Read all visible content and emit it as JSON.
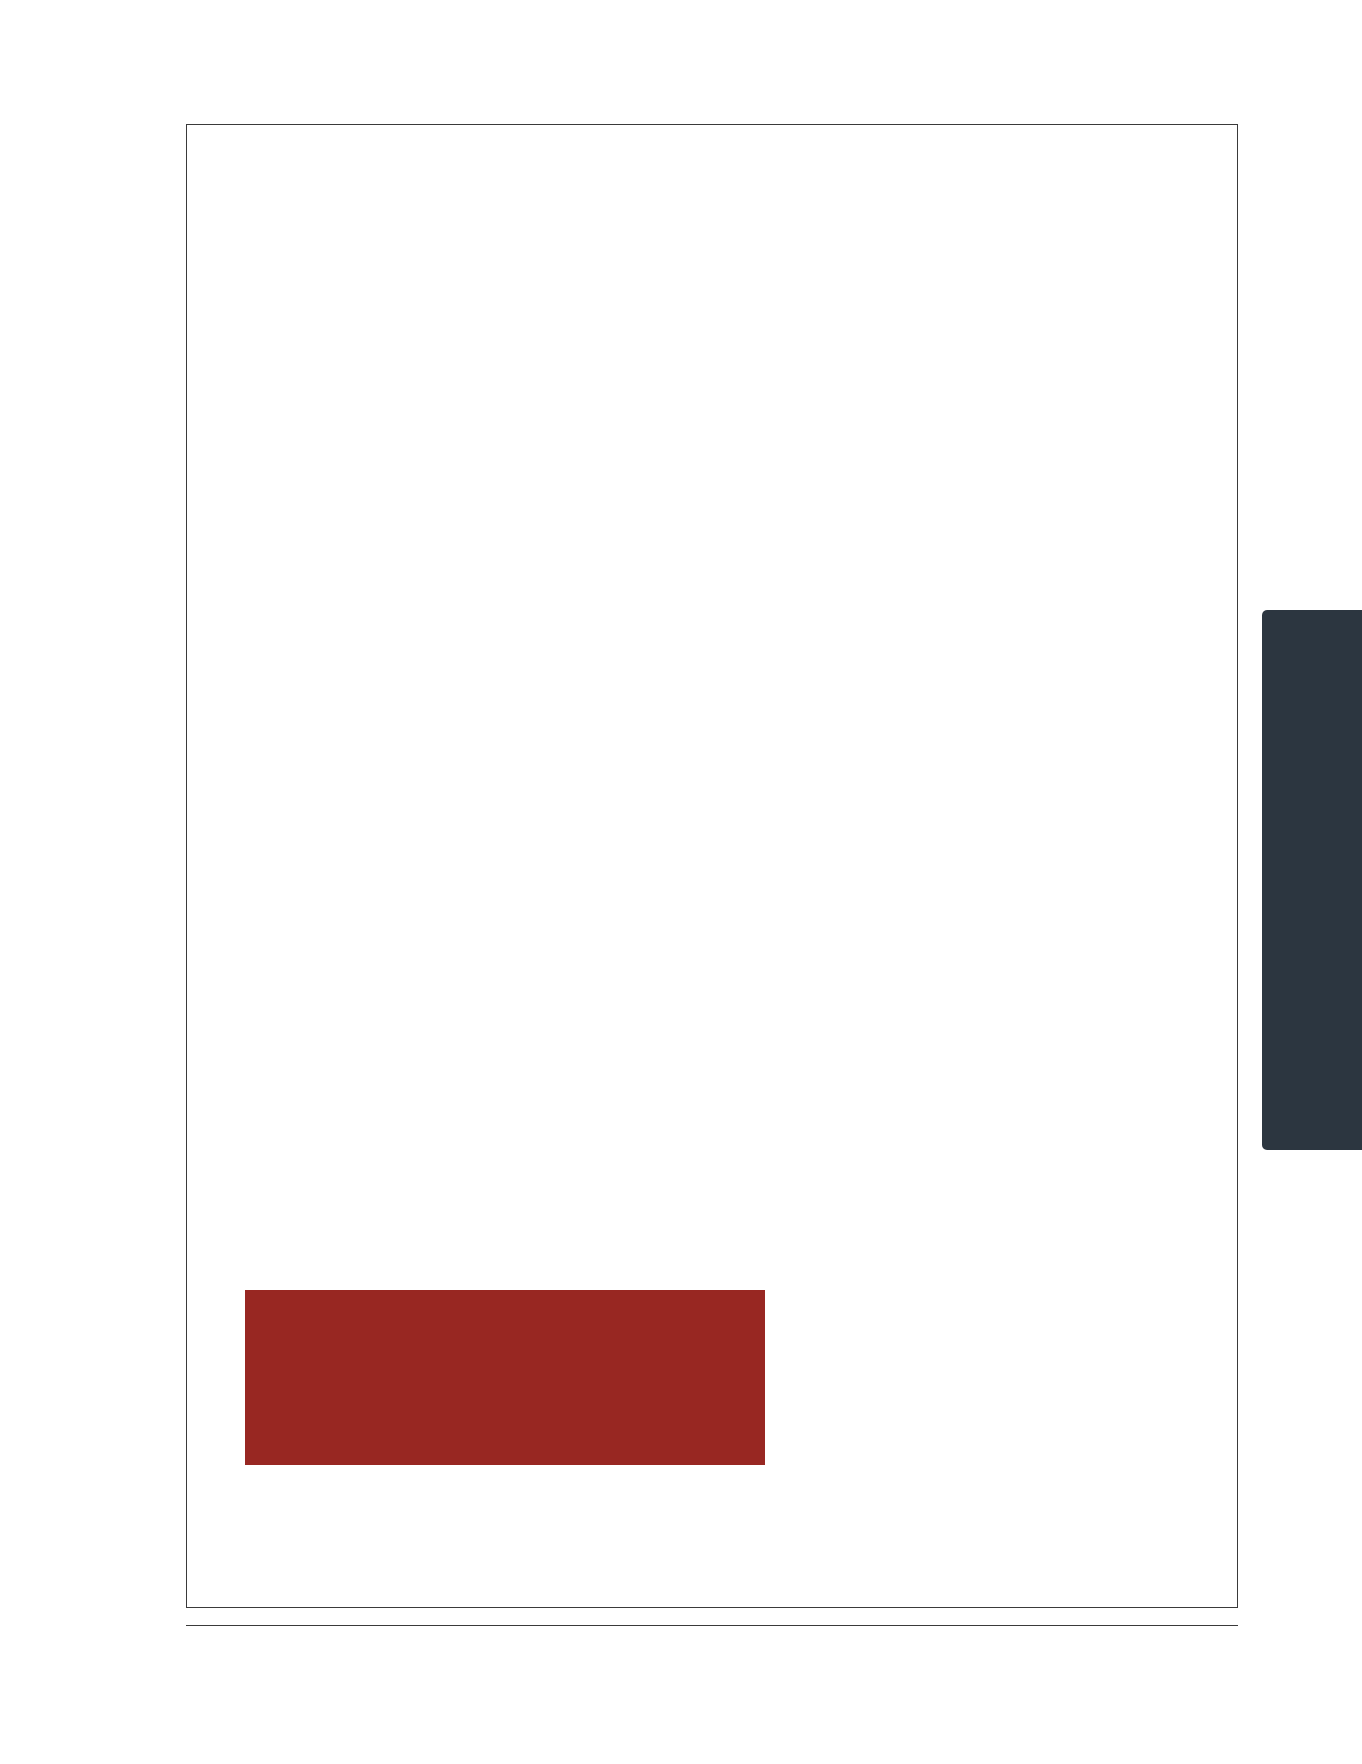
{
  "page": {
    "frame_border_color": "#3a3a3a",
    "background_color": "#ffffff"
  },
  "red_block": {
    "color": "#982722"
  },
  "side_tab": {
    "color": "#2c3640"
  }
}
